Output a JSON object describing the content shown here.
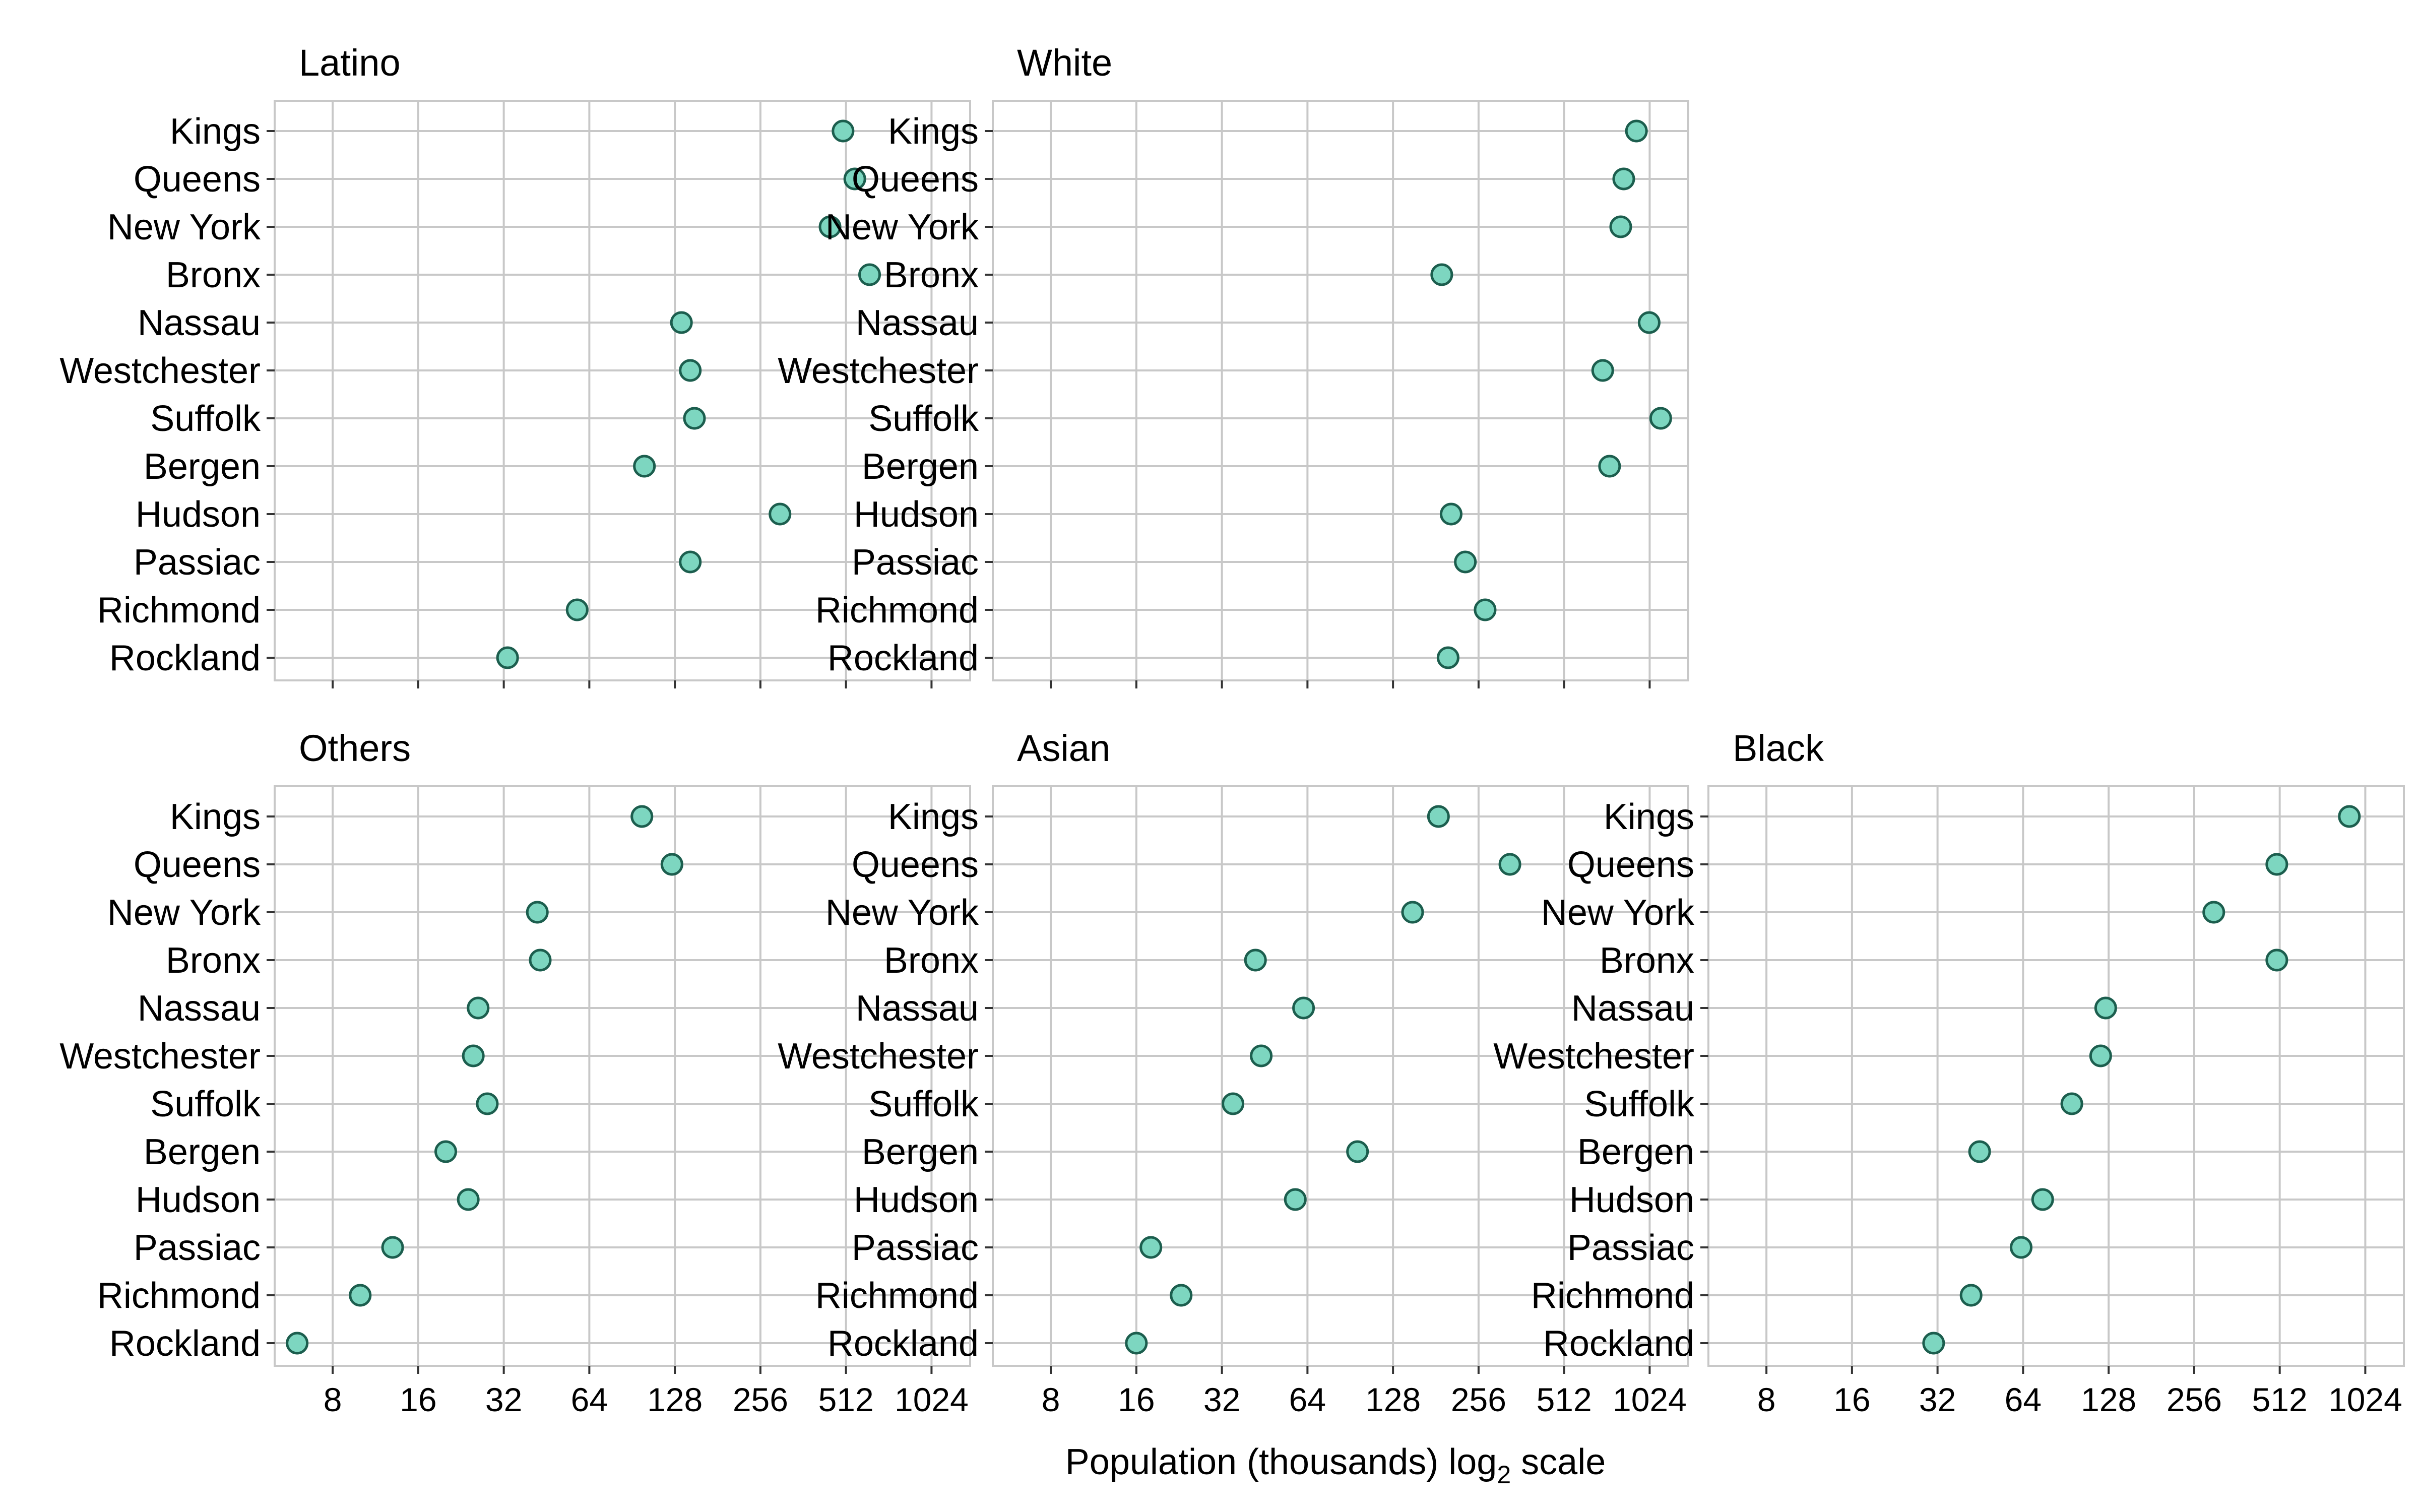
{
  "chart_data": {
    "type": "scatter",
    "subtype": "faceted-dot-plot",
    "xlabel": "Population (thousands) log",
    "xlabel_subscript": "2",
    "xlabel_suffix": " scale",
    "x_scale": "log2",
    "xlim": [
      5,
      1400
    ],
    "x_ticks": [
      8,
      16,
      32,
      64,
      128,
      256,
      512,
      1024
    ],
    "x_tick_labels": [
      "8",
      "16",
      "32",
      "64",
      "128",
      "256",
      "512",
      "1024"
    ],
    "grid": true,
    "marker_fill": "#7dd6c0",
    "marker_stroke": "#1c5e4e",
    "grid_color": "#c8c8c8",
    "categories": [
      "Kings",
      "Queens",
      "New York",
      "Bronx",
      "Nassau",
      "Westchester",
      "Suffolk",
      "Bergen",
      "Hudson",
      "Passiac",
      "Richmond",
      "Rockland"
    ],
    "facets": [
      {
        "name": "Latino",
        "row": 0,
        "col": 0,
        "show_x_axis": false,
        "values": [
          500,
          550,
          450,
          620,
          135,
          145,
          150,
          100,
          300,
          145,
          58,
          33
        ]
      },
      {
        "name": "White",
        "row": 0,
        "col": 1,
        "show_x_axis": false,
        "values": [
          920,
          830,
          810,
          190,
          1020,
          700,
          1120,
          740,
          205,
          230,
          270,
          200
        ]
      },
      {
        "name": "Others",
        "row": 1,
        "col": 0,
        "show_x_axis": true,
        "values": [
          98,
          125,
          42,
          43,
          26,
          25,
          28,
          20,
          24,
          13,
          10,
          6
        ]
      },
      {
        "name": "Asian",
        "row": 1,
        "col": 1,
        "show_x_axis": true,
        "values": [
          185,
          330,
          150,
          42,
          62,
          44,
          35,
          96,
          58,
          18,
          23,
          16
        ]
      },
      {
        "name": "Black",
        "row": 1,
        "col": 2,
        "show_x_axis": true,
        "values": [
          900,
          500,
          300,
          500,
          125,
          120,
          95,
          45,
          75,
          63,
          42,
          31
        ]
      }
    ]
  }
}
